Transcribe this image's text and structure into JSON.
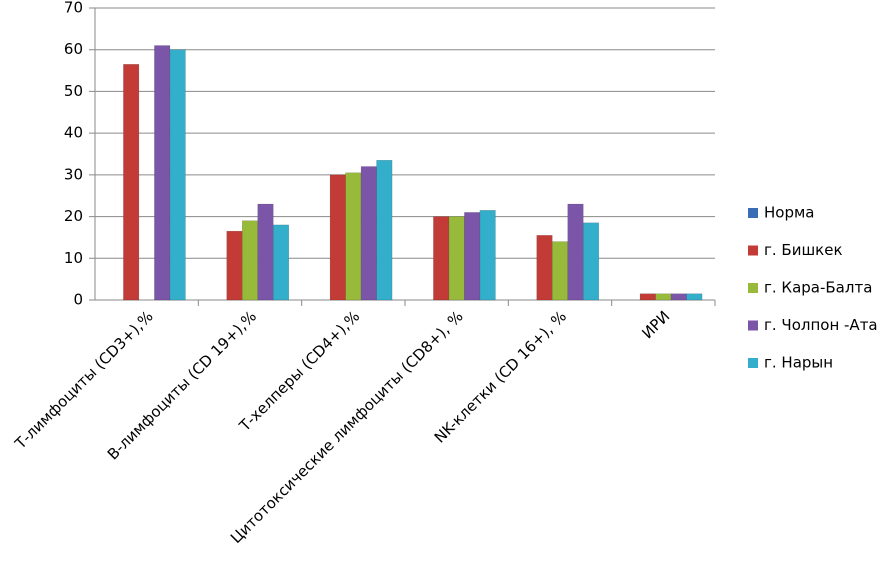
{
  "chart_data": {
    "type": "bar",
    "categories": [
      "Т-лимфоциты (CD3+),%",
      "В-лимфоциты (CD 19+),%",
      "Т-хелперы (CD4+),%",
      "Цитотоксические лимфоциты (CD8+), %",
      "NK-клетки (CD 16+), %",
      "ИРИ"
    ],
    "series": [
      {
        "name": "Норма",
        "color": "#3a6db5",
        "values": [
          null,
          null,
          null,
          null,
          null,
          null
        ]
      },
      {
        "name": "г. Бишкек",
        "color": "#c23b36",
        "values": [
          56.5,
          16.5,
          30,
          20,
          15.5,
          1.5
        ]
      },
      {
        "name": "г. Кара-Балта",
        "color": "#97ba3b",
        "values": [
          null,
          19,
          30.5,
          20,
          14,
          1.5
        ]
      },
      {
        "name": "г. Чолпон -Ата",
        "color": "#7b55a8",
        "values": [
          61,
          23,
          32,
          21,
          23,
          1.5
        ]
      },
      {
        "name": "г. Нарын",
        "color": "#33afcb",
        "values": [
          60,
          18,
          33.5,
          21.5,
          18.5,
          1.5
        ]
      }
    ],
    "ylim": [
      0,
      70
    ],
    "yticks": [
      0,
      10,
      20,
      30,
      40,
      50,
      60,
      70
    ],
    "grid": true,
    "legend": "right"
  }
}
